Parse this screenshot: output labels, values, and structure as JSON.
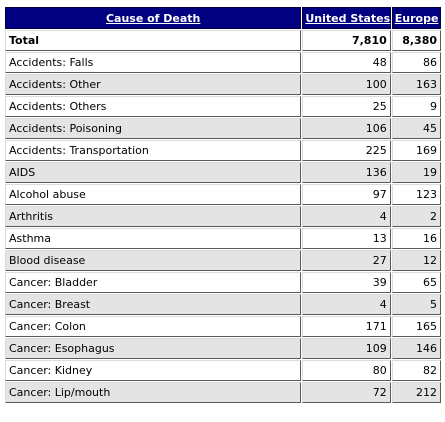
{
  "table": {
    "headers": {
      "cause": "Cause of Death",
      "us": "United States",
      "europe": "Europe"
    },
    "total": {
      "label": "Total",
      "us": "7,810",
      "europe": "8,380"
    },
    "rows": [
      {
        "cause": "Accidents: Falls",
        "us": "48",
        "europe": "86"
      },
      {
        "cause": "Accidents: Other",
        "us": "100",
        "europe": "163"
      },
      {
        "cause": "Accidents: Others",
        "us": "25",
        "europe": "9"
      },
      {
        "cause": "Accidents: Poisoning",
        "us": "106",
        "europe": "45"
      },
      {
        "cause": "Accidents: Transportation",
        "us": "225",
        "europe": "169"
      },
      {
        "cause": "AIDS",
        "us": "136",
        "europe": "19"
      },
      {
        "cause": "Alcohol abuse",
        "us": "97",
        "europe": "123"
      },
      {
        "cause": "Arthritis",
        "us": "4",
        "europe": "2"
      },
      {
        "cause": "Asthma",
        "us": "13",
        "europe": "16"
      },
      {
        "cause": "Blood disease",
        "us": "27",
        "europe": "12"
      },
      {
        "cause": "Cancer: Bladder",
        "us": "39",
        "europe": "65"
      },
      {
        "cause": "Cancer: Breast",
        "us": "4",
        "europe": "5"
      },
      {
        "cause": "Cancer: Colon",
        "us": "171",
        "europe": "165"
      },
      {
        "cause": "Cancer: Esophagus",
        "us": "109",
        "europe": "146"
      },
      {
        "cause": "Cancer: Kidney",
        "us": "80",
        "europe": "82"
      },
      {
        "cause": "Cancer: Lip/mouth",
        "us": "72",
        "europe": "212"
      }
    ]
  }
}
